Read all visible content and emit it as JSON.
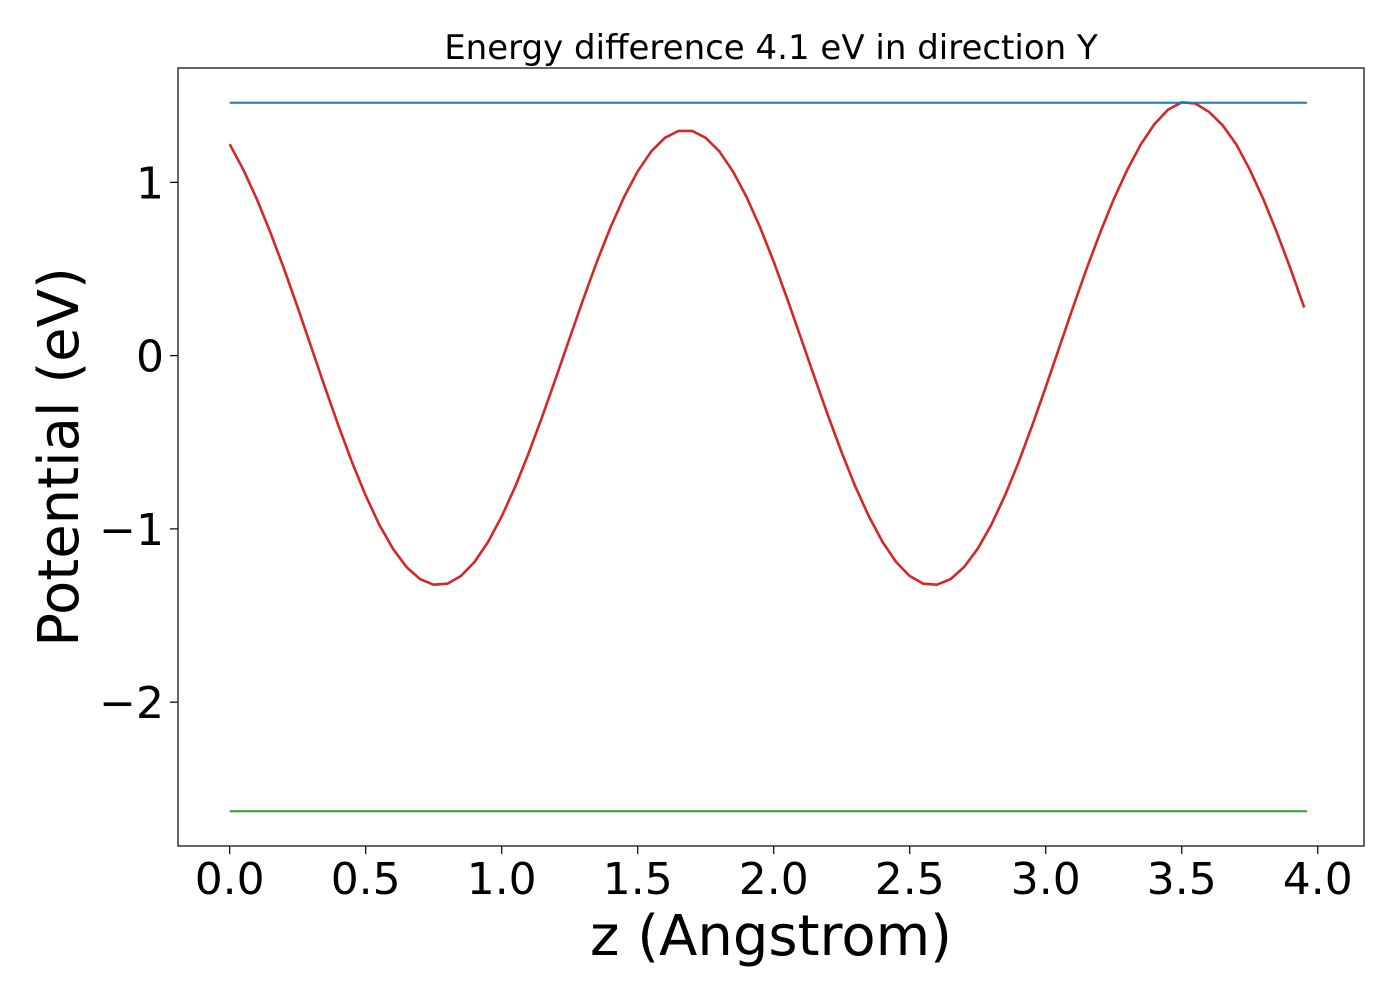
{
  "chart_data": {
    "type": "line",
    "title": "Energy difference 4.1 eV in direction Y",
    "xlabel": "z (Angstrom)",
    "ylabel": "Potential (eV)",
    "xlim": [
      -0.19,
      4.17
    ],
    "ylim": [
      -2.83,
      1.66
    ],
    "xticks": [
      0.0,
      0.5,
      1.0,
      1.5,
      2.0,
      2.5,
      3.0,
      3.5,
      4.0
    ],
    "xtick_labels": [
      "0.0",
      "0.5",
      "1.0",
      "1.5",
      "2.0",
      "2.5",
      "3.0",
      "3.5",
      "4.0"
    ],
    "yticks": [
      1,
      0,
      -1,
      -2
    ],
    "ytick_labels": [
      "1",
      "0",
      "−1",
      "−2"
    ],
    "grid": false,
    "legend": "none",
    "series": [
      {
        "color": "#d62728",
        "x": [
          0.0,
          0.05,
          0.1,
          0.15,
          0.2,
          0.25,
          0.3,
          0.35,
          0.4,
          0.45,
          0.5,
          0.55,
          0.6,
          0.65,
          0.7,
          0.75,
          0.8,
          0.85,
          0.9,
          0.95,
          1.0,
          1.05,
          1.1,
          1.15,
          1.2,
          1.25,
          1.3,
          1.35,
          1.4,
          1.45,
          1.5,
          1.55,
          1.6,
          1.65,
          1.7,
          1.75,
          1.8,
          1.85,
          1.9,
          1.95,
          2.0,
          2.05,
          2.1,
          2.15,
          2.2,
          2.25,
          2.3,
          2.35,
          2.4,
          2.45,
          2.5,
          2.55,
          2.6,
          2.65,
          2.7,
          2.75,
          2.8,
          2.85,
          2.9,
          2.95,
          3.0,
          3.05,
          3.1,
          3.15,
          3.2,
          3.25,
          3.3,
          3.35,
          3.4,
          3.45,
          3.5,
          3.55,
          3.6,
          3.65,
          3.7,
          3.75,
          3.8,
          3.85,
          3.9,
          3.95
        ],
        "y": [
          1.22,
          1.073,
          0.902,
          0.709,
          0.5,
          0.277,
          0.048,
          -0.182,
          -0.405,
          -0.616,
          -0.808,
          -0.976,
          -1.114,
          -1.22,
          -1.29,
          -1.322,
          -1.316,
          -1.272,
          -1.191,
          -1.075,
          -0.928,
          -0.755,
          -0.559,
          -0.347,
          -0.125,
          0.102,
          0.327,
          0.542,
          0.74,
          0.916,
          1.064,
          1.179,
          1.257,
          1.297,
          1.297,
          1.257,
          1.179,
          1.064,
          0.916,
          0.74,
          0.542,
          0.327,
          0.102,
          -0.125,
          -0.347,
          -0.559,
          -0.755,
          -0.928,
          -1.075,
          -1.191,
          -1.272,
          -1.316,
          -1.322,
          -1.29,
          -1.22,
          -1.114,
          -0.976,
          -0.808,
          -0.616,
          -0.405,
          -0.182,
          0.048,
          0.277,
          0.5,
          0.709,
          0.902,
          1.073,
          1.22,
          1.337,
          1.42,
          1.462,
          1.455,
          1.407,
          1.33,
          1.22,
          1.073,
          0.902,
          0.709,
          0.5,
          0.277
        ]
      },
      {
        "color": "#1f77b4",
        "x": [
          0.0,
          3.96
        ],
        "y": [
          1.46,
          1.46
        ]
      },
      {
        "color": "#2ca02c",
        "x": [
          0.0,
          3.96
        ],
        "y": [
          -2.63,
          -2.63
        ]
      }
    ]
  }
}
